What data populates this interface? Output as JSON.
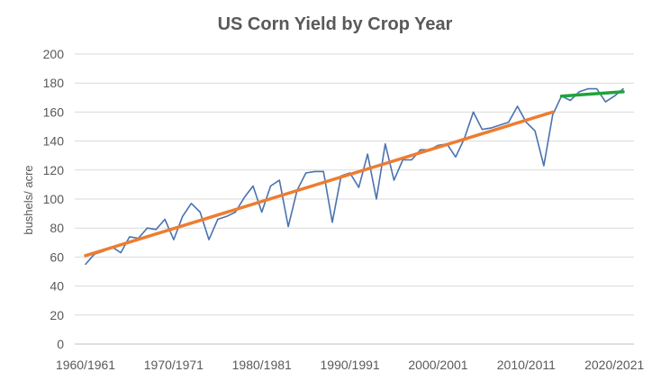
{
  "chart_data": {
    "type": "line",
    "title": "US Corn Yield by Crop Year",
    "xlabel": "",
    "ylabel": "bushels/ acre",
    "ylim": [
      0,
      200
    ],
    "yticks": [
      0,
      20,
      40,
      60,
      80,
      100,
      120,
      140,
      160,
      180,
      200
    ],
    "xlim": [
      1960,
      2021
    ],
    "xticks": [
      {
        "year": 1960,
        "label": "1960/1961"
      },
      {
        "year": 1970,
        "label": "1970/1971"
      },
      {
        "year": 1980,
        "label": "1980/1981"
      },
      {
        "year": 1990,
        "label": "1990/1991"
      },
      {
        "year": 2000,
        "label": "2000/2001"
      },
      {
        "year": 2010,
        "label": "2010/2011"
      },
      {
        "year": 2020,
        "label": "2020/2021"
      }
    ],
    "grid": true,
    "legend": "none",
    "series": [
      {
        "color": "#4a72b0",
        "style": "line",
        "x": [
          1960,
          1961,
          1962,
          1963,
          1964,
          1965,
          1966,
          1967,
          1968,
          1969,
          1970,
          1971,
          1972,
          1973,
          1974,
          1975,
          1976,
          1977,
          1978,
          1979,
          1980,
          1981,
          1982,
          1983,
          1984,
          1985,
          1986,
          1987,
          1988,
          1989,
          1990,
          1991,
          1992,
          1993,
          1994,
          1995,
          1996,
          1997,
          1998,
          1999,
          2000,
          2001,
          2002,
          2003,
          2004,
          2005,
          2006,
          2007,
          2008,
          2009,
          2010,
          2011,
          2012,
          2013,
          2014,
          2015,
          2016,
          2017,
          2018,
          2019,
          2020,
          2021
        ],
        "y": [
          55,
          62,
          64,
          67,
          63,
          74,
          73,
          80,
          79,
          86,
          72,
          88,
          97,
          91,
          72,
          86,
          88,
          91,
          101,
          109,
          91,
          109,
          113,
          81,
          106,
          118,
          119,
          119,
          84,
          116,
          118,
          108,
          131,
          100,
          138,
          113,
          127,
          127,
          134,
          134,
          137,
          138,
          129,
          142,
          160,
          148,
          149,
          151,
          153,
          164,
          153,
          147,
          123,
          158,
          171,
          168,
          174,
          176,
          176,
          167,
          171,
          176
        ]
      },
      {
        "color": "#ed7d31",
        "style": "trend",
        "x": [
          1960,
          2013
        ],
        "y": [
          61,
          160
        ]
      },
      {
        "color": "#1fa33a",
        "style": "trend",
        "x": [
          2014,
          2021
        ],
        "y": [
          171,
          174
        ]
      }
    ]
  }
}
